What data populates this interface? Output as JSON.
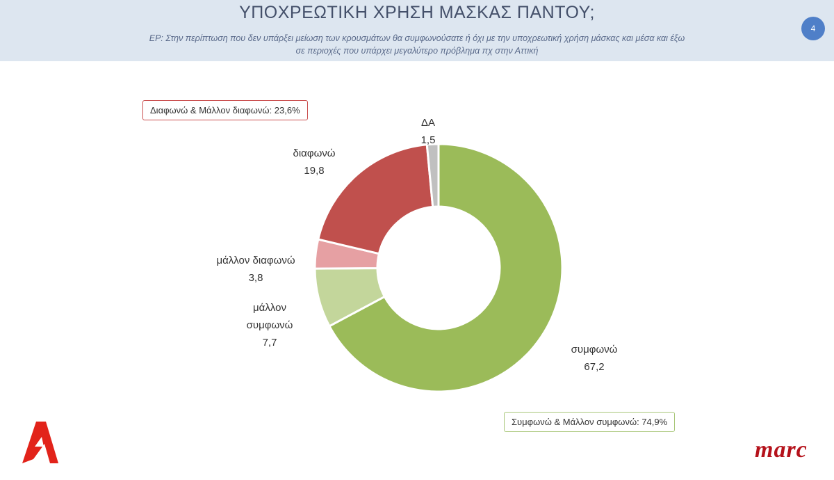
{
  "header": {
    "title": "ΥΠΟΧΡΕΩΤΙΚΗ ΧΡΗΣΗ ΜΑΣΚΑΣ ΠΑΝΤΟΥ;",
    "question_line1": "ΕΡ: Στην περίπτωση που δεν υπάρξει μείωση των κρουσμάτων θα συμφωνούσατε ή όχι με την υποχρεωτική χρήση μάσκας και μέσα και έξω",
    "question_line2": "σε περιοχές που υπάρχει μεγαλύτερο πρόβλημα πχ στην Αττική",
    "page_number": "4"
  },
  "summaries": {
    "disagree": "Διαφωνώ & Μάλλον διαφωνώ: 23,6%",
    "agree": "Συμφωνώ & Μάλλον συμφωνώ: 74,9%"
  },
  "chart_data": {
    "type": "pie",
    "donut": true,
    "labels": [
      "συμφωνώ",
      "μάλλον συμφωνώ",
      "μάλλον διαφωνώ",
      "διαφωνώ",
      "ΔΑ"
    ],
    "values": [
      67.2,
      7.7,
      3.8,
      19.8,
      1.5
    ],
    "value_labels": [
      "67,2",
      "7,7",
      "3,8",
      "19,8",
      "1,5"
    ],
    "colors": [
      "#9bbb59",
      "#c3d69b",
      "#e6a0a3",
      "#c0504d",
      "#c0c0c0"
    ],
    "label_lines": [
      [
        "συμφωνώ"
      ],
      [
        "μάλλον",
        "συμφωνώ"
      ],
      [
        "μάλλον διαφωνώ"
      ],
      [
        "διαφωνώ"
      ],
      [
        "ΔΑ"
      ]
    ],
    "start_angle_deg": 0,
    "direction": "clockwise"
  },
  "logos": {
    "right": "marc"
  }
}
